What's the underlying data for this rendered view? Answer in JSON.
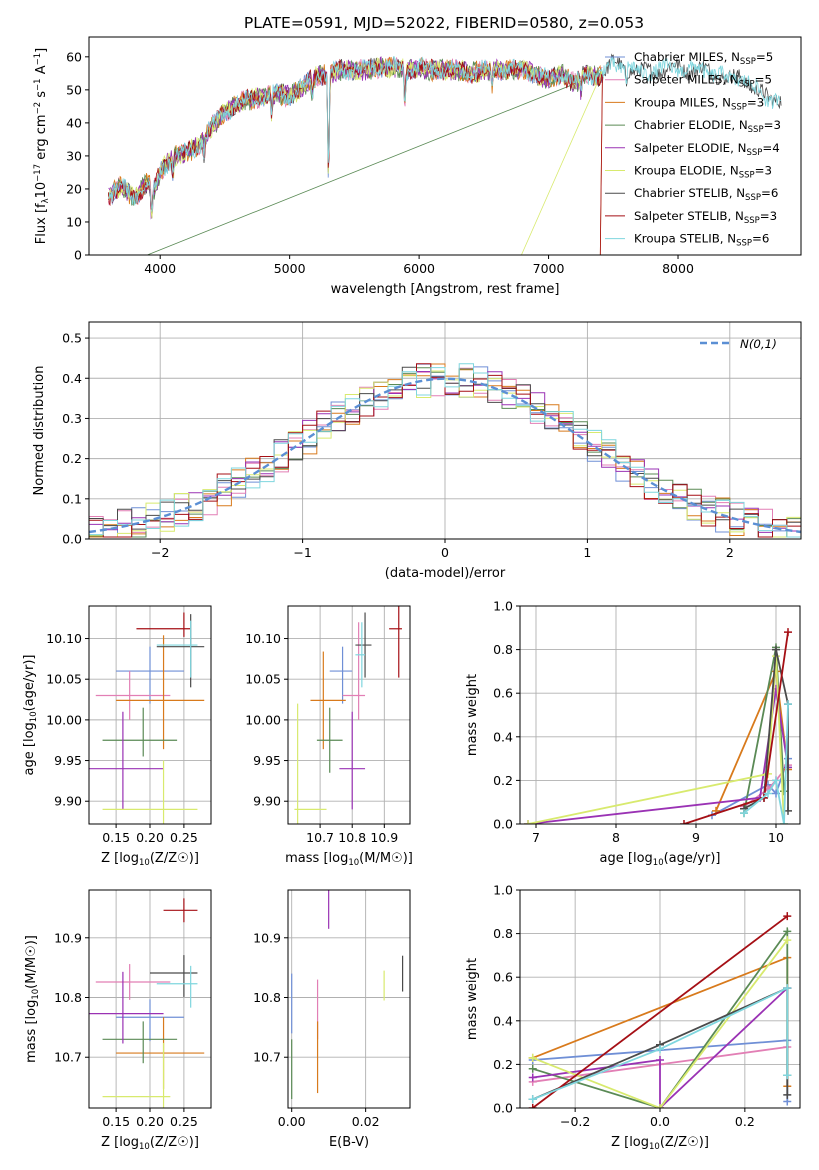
{
  "figure": {
    "title": "PLATE=0591, MJD=52022, FIBERID=0580, z=0.053"
  },
  "models": [
    {
      "name": "Chabrier MILES",
      "nssp": "5",
      "color": "#6f8fd6"
    },
    {
      "name": "Salpeter MILES",
      "nssp": "5",
      "color": "#e27fb5"
    },
    {
      "name": "Kroupa MILES",
      "nssp": "3",
      "color": "#d87a1c"
    },
    {
      "name": "Chabrier ELODIE",
      "nssp": "3",
      "color": "#5a8a55"
    },
    {
      "name": "Salpeter ELODIE",
      "nssp": "4",
      "color": "#9a32b4"
    },
    {
      "name": "Kroupa ELODIE",
      "nssp": "3",
      "color": "#d8ea6e"
    },
    {
      "name": "Chabrier STELIB",
      "nssp": "6",
      "color": "#4a4a4a"
    },
    {
      "name": "Salpeter STELIB",
      "nssp": "3",
      "color": "#a50f15"
    },
    {
      "name": "Kroupa STELIB",
      "nssp": "6",
      "color": "#7fd6de"
    }
  ],
  "chart_data": [
    {
      "id": "spectrum",
      "type": "line",
      "xlabel": "wavelength [Angstrom, rest frame]",
      "ylabel": "Flux [f",
      "xlim": [
        3450,
        8950
      ],
      "ylim": [
        0,
        66
      ],
      "xticks": [
        4000,
        5000,
        6000,
        7000,
        8000
      ],
      "yticks": [
        0,
        10,
        20,
        30,
        40,
        50,
        60
      ],
      "continuum": [
        [
          3600,
          18
        ],
        [
          3700,
          21
        ],
        [
          3800,
          17
        ],
        [
          3900,
          22
        ],
        [
          3950,
          19
        ],
        [
          4000,
          25
        ],
        [
          4100,
          30
        ],
        [
          4200,
          31
        ],
        [
          4300,
          33
        ],
        [
          4400,
          39
        ],
        [
          4500,
          43
        ],
        [
          4600,
          46
        ],
        [
          4700,
          47
        ],
        [
          4800,
          48
        ],
        [
          4900,
          49
        ],
        [
          5000,
          48
        ],
        [
          5100,
          51
        ],
        [
          5200,
          54
        ],
        [
          5300,
          55
        ],
        [
          5400,
          56
        ],
        [
          5500,
          56
        ],
        [
          5600,
          56
        ],
        [
          5700,
          57
        ],
        [
          5800,
          57
        ],
        [
          5900,
          56
        ],
        [
          6000,
          57
        ],
        [
          6100,
          56
        ],
        [
          6200,
          56
        ],
        [
          6300,
          56
        ],
        [
          6400,
          55
        ],
        [
          6500,
          56
        ],
        [
          6600,
          56
        ],
        [
          6700,
          56
        ],
        [
          6800,
          56
        ],
        [
          6900,
          55
        ],
        [
          7000,
          53
        ],
        [
          7100,
          55
        ],
        [
          7200,
          52
        ],
        [
          7300,
          55
        ],
        [
          7400,
          54
        ],
        [
          7500,
          58
        ],
        [
          7600,
          57
        ],
        [
          7700,
          55
        ],
        [
          7800,
          56
        ],
        [
          7900,
          56
        ],
        [
          8000,
          57
        ],
        [
          8100,
          56
        ],
        [
          8200,
          56
        ],
        [
          8300,
          55
        ],
        [
          8400,
          53
        ],
        [
          8500,
          54
        ],
        [
          8600,
          50
        ],
        [
          8700,
          47
        ],
        [
          8800,
          48
        ]
      ],
      "dips": [
        [
          3934,
          -9
        ],
        [
          4100,
          -6
        ],
        [
          4340,
          -5
        ],
        [
          4861,
          -6
        ],
        [
          5175,
          -5
        ],
        [
          5300,
          -35
        ],
        [
          5890,
          -12
        ],
        [
          6563,
          -5
        ],
        [
          7250,
          -5
        ],
        [
          7600,
          -5
        ]
      ],
      "cutoffs": [
        [
          3900,
          0
        ],
        [
          6790,
          0
        ],
        [
          7400,
          0
        ]
      ]
    },
    {
      "id": "residual_histogram",
      "type": "histogram",
      "xlabel": "(data-model)/error",
      "ylabel": "Normed distribution",
      "xlim": [
        -2.5,
        2.5
      ],
      "ylim": [
        0,
        0.54
      ],
      "xticks": [
        -2,
        -1,
        0,
        1,
        2
      ],
      "yticks": [
        0.0,
        0.1,
        0.2,
        0.3,
        0.4,
        0.5
      ],
      "legend": "N(0,1)",
      "bin_width": 0.1
    },
    {
      "id": "age_vs_Z",
      "type": "errorbar",
      "xlabel": "Z [log",
      "ylabel": "age  [log",
      "xlim": [
        0.11,
        0.29
      ],
      "ylim": [
        9.872,
        10.14
      ],
      "xticks": [
        0.15,
        0.2,
        0.25
      ],
      "yticks": [
        9.9,
        9.95,
        10.0,
        10.05,
        10.1
      ],
      "points": [
        {
          "x": 0.2,
          "y": 10.06,
          "xerr": [
            0.05,
            0.05
          ],
          "yerr": [
            0.04,
            0.03
          ]
        },
        {
          "x": 0.17,
          "y": 10.03,
          "xerr": [
            0.05,
            0.06
          ],
          "yerr": [
            0.03,
            0.03
          ]
        },
        {
          "x": 0.22,
          "y": 10.024,
          "xerr": [
            0.07,
            0.06
          ],
          "yerr": [
            0.06,
            0.08
          ]
        },
        {
          "x": 0.19,
          "y": 9.975,
          "xerr": [
            0.06,
            0.05
          ],
          "yerr": [
            0.02,
            0.04
          ]
        },
        {
          "x": 0.16,
          "y": 9.94,
          "xerr": [
            0.05,
            0.06
          ],
          "yerr": [
            0.05,
            0.07
          ]
        },
        {
          "x": 0.22,
          "y": 9.89,
          "xerr": [
            0.09,
            0.05
          ],
          "yerr": [
            0.03,
            0.06
          ]
        },
        {
          "x": 0.26,
          "y": 10.09,
          "xerr": [
            0.05,
            0.02
          ],
          "yerr": [
            0.05,
            0.04
          ]
        },
        {
          "x": 0.25,
          "y": 10.112,
          "xerr": [
            0.07,
            0.01
          ],
          "yerr": [
            0.01,
            0.02
          ]
        },
        {
          "x": 0.26,
          "y": 10.092,
          "xerr": [
            0.05,
            0.01
          ],
          "yerr": [
            0.04,
            0.03
          ]
        }
      ]
    },
    {
      "id": "age_vs_mass",
      "type": "errorbar",
      "xlabel": "mass [log",
      "ylabel": "",
      "xlim": [
        10.6,
        10.98
      ],
      "ylim": [
        9.872,
        10.14
      ],
      "xticks": [
        10.7,
        10.8,
        10.9
      ],
      "yticks": [
        9.9,
        9.95,
        10.0,
        10.05,
        10.1
      ],
      "points": [
        {
          "x": 10.77,
          "y": 10.06,
          "xerr": [
            0.04,
            0.03
          ],
          "yerr": [
            0.04,
            0.03
          ]
        },
        {
          "x": 10.82,
          "y": 10.03,
          "xerr": [
            0.05,
            0.02
          ],
          "yerr": [
            0.03,
            0.09
          ]
        },
        {
          "x": 10.71,
          "y": 10.024,
          "xerr": [
            0.04,
            0.07
          ],
          "yerr": [
            0.06,
            0.06
          ]
        },
        {
          "x": 10.73,
          "y": 9.975,
          "xerr": [
            0.04,
            0.04
          ],
          "yerr": [
            0.04,
            0.04
          ]
        },
        {
          "x": 10.8,
          "y": 9.94,
          "xerr": [
            0.04,
            0.04
          ],
          "yerr": [
            0.05,
            0.07
          ]
        },
        {
          "x": 10.63,
          "y": 9.89,
          "xerr": [
            0.01,
            0.09
          ],
          "yerr": [
            0.02,
            0.13
          ]
        },
        {
          "x": 10.84,
          "y": 10.092,
          "xerr": [
            0.03,
            0.02
          ],
          "yerr": [
            0.04,
            0.04
          ]
        },
        {
          "x": 10.945,
          "y": 10.112,
          "xerr": [
            0.03,
            0.01
          ],
          "yerr": [
            0.06,
            0.03
          ]
        },
        {
          "x": 10.83,
          "y": 10.08,
          "xerr": [
            0.02,
            0.01
          ],
          "yerr": [
            0.04,
            0.04
          ]
        }
      ]
    },
    {
      "id": "mass_weight_vs_age",
      "type": "line",
      "xlabel": "age  [log",
      "ylabel": "mass weight",
      "xlim": [
        6.8,
        10.3
      ],
      "ylim": [
        0,
        1
      ],
      "xticks": [
        7,
        8,
        9,
        10
      ],
      "yticks": [
        0.0,
        0.2,
        0.4,
        0.6,
        0.8,
        1.0
      ],
      "series": [
        {
          "model": 0,
          "points": [
            [
              9.2,
              0.04
            ],
            [
              9.9,
              0.18
            ],
            [
              10.0,
              0.14
            ],
            [
              10.15,
              0.3
            ]
          ]
        },
        {
          "model": 1,
          "points": [
            [
              9.6,
              0.08
            ],
            [
              9.9,
              0.16
            ],
            [
              10.0,
              0.2
            ],
            [
              10.15,
              0.27
            ]
          ]
        },
        {
          "model": 2,
          "points": [
            [
              9.25,
              0.06
            ],
            [
              10.0,
              0.7
            ],
            [
              10.15,
              0.25
            ]
          ]
        },
        {
          "model": 3,
          "points": [
            [
              9.6,
              0.05
            ],
            [
              10.0,
              0.81
            ],
            [
              10.1,
              0.15
            ]
          ]
        },
        {
          "model": 4,
          "points": [
            [
              6.9,
              0.0
            ],
            [
              9.8,
              0.12
            ],
            [
              10.0,
              0.62
            ],
            [
              10.15,
              0.26
            ]
          ]
        },
        {
          "model": 5,
          "points": [
            [
              6.9,
              0.0
            ],
            [
              9.9,
              0.23
            ],
            [
              10.0,
              0.77
            ],
            [
              10.1,
              0.0
            ]
          ]
        },
        {
          "model": 6,
          "points": [
            [
              9.6,
              0.07
            ],
            [
              9.85,
              0.12
            ],
            [
              10.0,
              0.8
            ],
            [
              10.15,
              0.55
            ],
            [
              10.15,
              0.06
            ]
          ]
        },
        {
          "model": 7,
          "points": [
            [
              8.85,
              0.0
            ],
            [
              9.85,
              0.12
            ],
            [
              10.15,
              0.88
            ]
          ]
        },
        {
          "model": 8,
          "points": [
            [
              9.6,
              0.05
            ],
            [
              9.9,
              0.14
            ],
            [
              10.0,
              0.2
            ],
            [
              10.1,
              0.0
            ],
            [
              10.15,
              0.55
            ]
          ]
        }
      ]
    },
    {
      "id": "mass_vs_Z",
      "type": "errorbar",
      "xlabel": "Z [log",
      "ylabel": "mass [log",
      "xlim": [
        0.11,
        0.29
      ],
      "ylim": [
        10.615,
        10.98
      ],
      "xticks": [
        0.15,
        0.2,
        0.25
      ],
      "yticks": [
        10.7,
        10.8,
        10.9
      ],
      "points": [
        {
          "x": 0.2,
          "y": 10.767,
          "xerr": [
            0.05,
            0.05
          ],
          "yerr": [
            0.04,
            0.03
          ]
        },
        {
          "x": 0.17,
          "y": 10.826,
          "xerr": [
            0.05,
            0.06
          ],
          "yerr": [
            0.03,
            0.03
          ]
        },
        {
          "x": 0.22,
          "y": 10.707,
          "xerr": [
            0.07,
            0.06
          ],
          "yerr": [
            0.06,
            0.06
          ]
        },
        {
          "x": 0.19,
          "y": 10.73,
          "xerr": [
            0.06,
            0.05
          ],
          "yerr": [
            0.04,
            0.03
          ]
        },
        {
          "x": 0.16,
          "y": 10.773,
          "xerr": [
            0.05,
            0.06
          ],
          "yerr": [
            0.05,
            0.07
          ]
        },
        {
          "x": 0.22,
          "y": 10.634,
          "xerr": [
            0.09,
            0.01
          ],
          "yerr": [
            0.02,
            0.09
          ]
        },
        {
          "x": 0.25,
          "y": 10.841,
          "xerr": [
            0.05,
            0.02
          ],
          "yerr": [
            0.04,
            0.03
          ]
        },
        {
          "x": 0.25,
          "y": 10.946,
          "xerr": [
            0.03,
            0.02
          ],
          "yerr": [
            0.02,
            0.02
          ]
        },
        {
          "x": 0.26,
          "y": 10.823,
          "xerr": [
            0.05,
            0.01
          ],
          "yerr": [
            0.04,
            0.03
          ]
        }
      ]
    },
    {
      "id": "mass_vs_ebv",
      "type": "errorbar",
      "xlabel": "E(B-V)",
      "ylabel": "",
      "xlim": [
        -0.001,
        0.032
      ],
      "ylim": [
        10.615,
        10.98
      ],
      "xticks": [
        0.0,
        0.02
      ],
      "yticks": [
        10.7,
        10.8,
        10.9
      ],
      "points": [
        {
          "x": 0.0,
          "y": 10.79,
          "yerr": [
            0.05,
            0.05
          ]
        },
        {
          "x": 0.007,
          "y": 10.78,
          "yerr": [
            0.05,
            0.05
          ]
        },
        {
          "x": 0.007,
          "y": 10.7,
          "yerr": [
            0.06,
            0.06
          ]
        },
        {
          "x": 0.0,
          "y": 10.68,
          "yerr": [
            0.05,
            0.05
          ]
        },
        {
          "x": 0.01,
          "y": 10.955,
          "yerr": [
            0.04,
            0.04
          ]
        },
        {
          "x": 0.025,
          "y": 10.82,
          "yerr": [
            0.025,
            0.025
          ]
        },
        {
          "x": 0.03,
          "y": 10.84,
          "yerr": [
            0.03,
            0.03
          ]
        }
      ]
    },
    {
      "id": "mass_weight_vs_Z",
      "type": "line",
      "xlabel": "Z [log",
      "ylabel": "mass weight",
      "xlim": [
        -0.33,
        0.33
      ],
      "ylim": [
        0,
        1
      ],
      "xticks": [
        -0.2,
        0.0,
        0.2
      ],
      "yticks": [
        0.0,
        0.2,
        0.4,
        0.6,
        0.8,
        1.0
      ],
      "series": [
        {
          "model": 0,
          "points": [
            [
              -0.3,
              0.22
            ],
            [
              0.3,
              0.31
            ],
            [
              0.3,
              0.03
            ]
          ]
        },
        {
          "model": 1,
          "points": [
            [
              -0.3,
              0.12
            ],
            [
              0.0,
              0.2
            ],
            [
              0.3,
              0.28
            ]
          ]
        },
        {
          "model": 2,
          "points": [
            [
              -0.3,
              0.23
            ],
            [
              0.3,
              0.69
            ],
            [
              0.3,
              0.1
            ]
          ]
        },
        {
          "model": 3,
          "points": [
            [
              -0.3,
              0.18
            ],
            [
              0.0,
              0.0
            ],
            [
              0.3,
              0.81
            ],
            [
              0.3,
              0.15
            ]
          ]
        },
        {
          "model": 4,
          "points": [
            [
              -0.3,
              0.14
            ],
            [
              0.0,
              0.22
            ],
            [
              0.0,
              0.0
            ],
            [
              0.3,
              0.55
            ]
          ]
        },
        {
          "model": 5,
          "points": [
            [
              -0.3,
              0.23
            ],
            [
              0.0,
              0.0
            ],
            [
              0.3,
              0.77
            ]
          ]
        },
        {
          "model": 6,
          "points": [
            [
              -0.3,
              0.04
            ],
            [
              0.0,
              0.29
            ],
            [
              0.3,
              0.55
            ],
            [
              0.3,
              0.06
            ]
          ]
        },
        {
          "model": 7,
          "points": [
            [
              -0.3,
              0.0
            ],
            [
              0.3,
              0.88
            ]
          ]
        },
        {
          "model": 8,
          "points": [
            [
              -0.3,
              0.04
            ],
            [
              0.0,
              0.27
            ],
            [
              0.3,
              0.55
            ],
            [
              0.3,
              0.15
            ]
          ]
        }
      ]
    }
  ]
}
